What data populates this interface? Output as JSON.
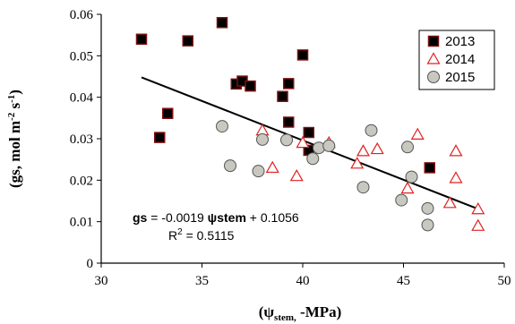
{
  "chart_data": {
    "type": "scatter",
    "title": "",
    "xlabel_parts": {
      "open": "(ψ",
      "sub": "stem,",
      "rest": " -MPa)"
    },
    "ylabel_parts": {
      "base": "(gs, mol m",
      "sup1": "-2",
      "mid": " s",
      "sup2": "-1",
      "close": ")"
    },
    "xlim": [
      30,
      50
    ],
    "ylim": [
      0,
      0.06
    ],
    "xticks": [
      30,
      35,
      40,
      45,
      50
    ],
    "yticks": [
      "0",
      "0.01",
      "0.02",
      "0.03",
      "0.04",
      "0.05",
      "0.06"
    ],
    "ytick_values": [
      0,
      0.01,
      0.02,
      0.03,
      0.04,
      0.05,
      0.06
    ],
    "grid": false,
    "legend_position": "top-right",
    "series": [
      {
        "name": "2013",
        "marker": "square",
        "color": "#000000",
        "edge": "#7a1010",
        "points": [
          [
            32.0,
            0.054
          ],
          [
            32.9,
            0.0303
          ],
          [
            33.3,
            0.0361
          ],
          [
            34.3,
            0.0536
          ],
          [
            36.0,
            0.058
          ],
          [
            36.7,
            0.0432
          ],
          [
            37.0,
            0.0439
          ],
          [
            37.4,
            0.0427
          ],
          [
            39.0,
            0.0402
          ],
          [
            39.3,
            0.0433
          ],
          [
            39.3,
            0.034
          ],
          [
            40.0,
            0.0502
          ],
          [
            40.3,
            0.0315
          ],
          [
            40.3,
            0.0272
          ],
          [
            46.3,
            0.023
          ]
        ]
      },
      {
        "name": "2014",
        "marker": "triangle",
        "color": "#e02020",
        "points": [
          [
            38.0,
            0.032
          ],
          [
            38.5,
            0.023
          ],
          [
            39.7,
            0.021
          ],
          [
            40.0,
            0.029
          ],
          [
            41.3,
            0.029
          ],
          [
            42.7,
            0.024
          ],
          [
            43.0,
            0.027
          ],
          [
            43.7,
            0.0275
          ],
          [
            45.2,
            0.018
          ],
          [
            45.7,
            0.031
          ],
          [
            47.3,
            0.0145
          ],
          [
            47.6,
            0.027
          ],
          [
            47.6,
            0.0205
          ],
          [
            48.7,
            0.009
          ],
          [
            48.7,
            0.013
          ]
        ]
      },
      {
        "name": "2015",
        "marker": "circle",
        "color": "#c8c8c0",
        "edge": "#555555",
        "points": [
          [
            36.0,
            0.033
          ],
          [
            36.4,
            0.0235
          ],
          [
            37.8,
            0.0222
          ],
          [
            38.0,
            0.0298
          ],
          [
            39.2,
            0.0297
          ],
          [
            40.5,
            0.0252
          ],
          [
            40.8,
            0.0278
          ],
          [
            41.3,
            0.0283
          ],
          [
            43.0,
            0.0183
          ],
          [
            43.4,
            0.032
          ],
          [
            44.9,
            0.0152
          ],
          [
            45.2,
            0.028
          ],
          [
            45.4,
            0.0208
          ],
          [
            46.2,
            0.0132
          ],
          [
            46.2,
            0.0092
          ]
        ]
      }
    ],
    "trendline": {
      "x_start": 32.0,
      "x_end": 48.6,
      "slope": -0.0019,
      "intercept": 0.1056
    },
    "annotation": {
      "eq_bold": "gs",
      "eq_mid": " = -0.0019 ",
      "eq_bold2": "ψstem",
      "eq_end": " + 0.1056",
      "r2_base": "R",
      "r2_sup": "2",
      "r2_value": " = 0.5115"
    }
  }
}
